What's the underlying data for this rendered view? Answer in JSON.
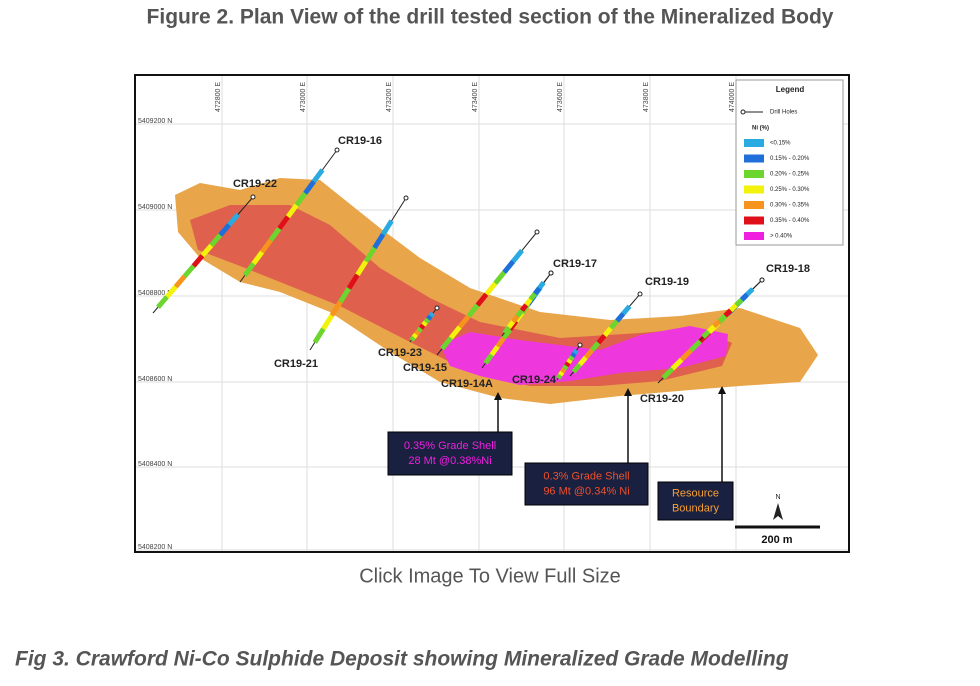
{
  "header": {
    "title": "Figure 2. Plan View of the drill tested section of the Mineralized Body"
  },
  "map": {
    "eastings": [
      "472800 E",
      "473000 E",
      "473200 E",
      "473400 E",
      "473600 E",
      "473800 E",
      "474000 E"
    ],
    "northings": [
      "5409200 N",
      "5409000 N",
      "5408800 N",
      "5408600 N",
      "5408400 N",
      "5408200 N"
    ],
    "legend": {
      "title": "Legend",
      "drill_holes": "Drill Holes",
      "grade_title": "Ni (%)",
      "items": [
        {
          "label": "<0.15%",
          "color": "#29aae1"
        },
        {
          "label": "0.15% - 0.20%",
          "color": "#1e6fd9"
        },
        {
          "label": "0.20% - 0.25%",
          "color": "#6cd62e"
        },
        {
          "label": "0.25% - 0.30%",
          "color": "#f2f20a"
        },
        {
          "label": "0.30% - 0.35%",
          "color": "#f7941d"
        },
        {
          "label": "0.35% - 0.40%",
          "color": "#e0101a"
        },
        {
          "label": "> 0.40%",
          "color": "#f01fe0"
        }
      ]
    },
    "drill_holes": [
      "CR19-22",
      "CR19-16",
      "CR19-21",
      "CR19-23",
      "CR19-15",
      "CR19-14A",
      "CR19-17",
      "CR19-24",
      "CR19-19",
      "CR19-20",
      "CR19-18"
    ],
    "callouts": [
      {
        "lines": [
          "0.35% Grade Shell",
          "28 Mt @0.38%Ni"
        ],
        "color": "#f01fe0"
      },
      {
        "lines": [
          "0.3% Grade Shell",
          "96 Mt @0.34% Ni"
        ],
        "color": "#f0502a"
      },
      {
        "lines": [
          "Resource",
          "Boundary"
        ],
        "color": "#f7a030"
      }
    ],
    "north": "N",
    "scale": "200 m"
  },
  "caption": "Click Image To View Full Size",
  "figure_caption": "Fig 3. Crawford Ni-Co Sulphide Deposit showing Mineralized Grade Modelling"
}
